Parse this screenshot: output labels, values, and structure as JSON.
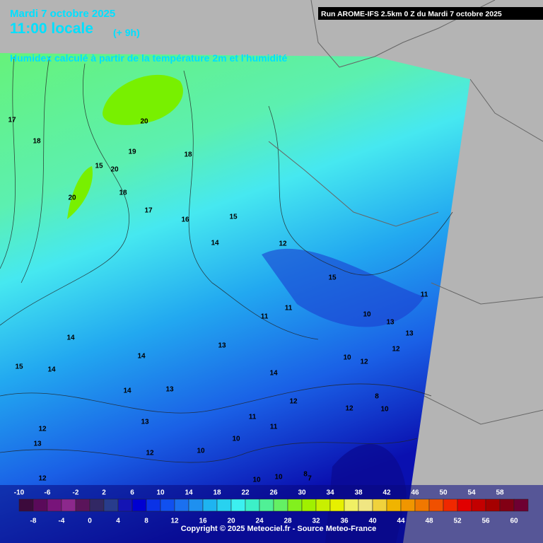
{
  "header": {
    "date": "Mardi 7 octobre 2025",
    "time": "11:00 locale",
    "offset": "(+ 9h)",
    "subtitle": "Humidex calculé à partir de la température 2m et l'humidité",
    "run": "Run AROME-IFS 2.5km 0 Z du Mardi 7 octobre 2025"
  },
  "legend": {
    "labels": [
      -10,
      -8,
      -6,
      -4,
      -2,
      0,
      2,
      4,
      6,
      8,
      10,
      12,
      14,
      16,
      18,
      20,
      22,
      24,
      26,
      28,
      30,
      32,
      34,
      36,
      38,
      40,
      42,
      44,
      46,
      48,
      50,
      52,
      54,
      56,
      58,
      60
    ],
    "colors": [
      "#3c0a3c",
      "#5a0a5a",
      "#78147a",
      "#8c288c",
      "#5a145a",
      "#322864",
      "#283c8c",
      "#1414b4",
      "#0000d2",
      "#0a32e6",
      "#1050f0",
      "#1a70f0",
      "#1e90f0",
      "#1eb4f0",
      "#28d2f0",
      "#3cf0f0",
      "#3cf0c8",
      "#50f096",
      "#64f064",
      "#82f01e",
      "#a0f000",
      "#c8f000",
      "#e6f000",
      "#f0f064",
      "#f0e682",
      "#f0d23c",
      "#f0b400",
      "#f09600",
      "#f07800",
      "#f05000",
      "#f02800",
      "#e10000",
      "#c30000",
      "#a50000",
      "#820014",
      "#6e0032"
    ]
  },
  "contour_labels": [
    17,
    18,
    20,
    19,
    15,
    20,
    18,
    20,
    18,
    17,
    16,
    15,
    14,
    12,
    15,
    11,
    11,
    11,
    10,
    13,
    13,
    12,
    14,
    14,
    13,
    15,
    14,
    14,
    13,
    12,
    10,
    12,
    14,
    13,
    11,
    10,
    12,
    8,
    10,
    12,
    10,
    11,
    10,
    12,
    13,
    12,
    10,
    8,
    7
  ],
  "copyright": "Copyright © 2025 Meteociel.fr - Source Meteo-France"
}
